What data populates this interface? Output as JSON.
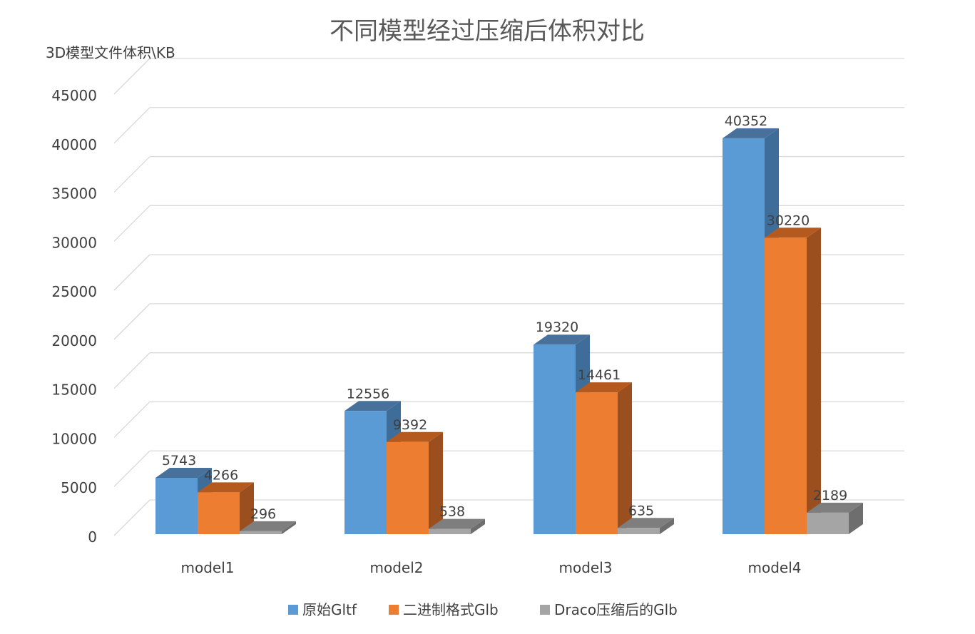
{
  "chart_data": {
    "type": "bar",
    "title": "不同模型经过压缩后体积对比",
    "ylabel": "3D模型文件体积\\KB",
    "xlabel": "",
    "categories": [
      "model1",
      "model2",
      "model3",
      "model4"
    ],
    "ylim": [
      0,
      45000
    ],
    "yticks": [
      0,
      5000,
      10000,
      15000,
      20000,
      25000,
      30000,
      35000,
      40000,
      45000
    ],
    "grid": true,
    "legend_position": "bottom",
    "series": [
      {
        "name": "原始Gltf",
        "values": [
          5743,
          12556,
          19320,
          40352
        ],
        "color": "#5b9bd5",
        "side_color": "#3e6d99",
        "top_color": "#47719a"
      },
      {
        "name": "二进制格式Glb",
        "values": [
          4266,
          9392,
          14461,
          30220
        ],
        "color": "#ed7d31",
        "side_color": "#9c4f1e",
        "top_color": "#b55a1f"
      },
      {
        "name": "Draco压缩后的Glb",
        "values": [
          296,
          538,
          635,
          2189
        ],
        "color": "#a5a5a5",
        "side_color": "#6e6e6e",
        "top_color": "#7e7e7e"
      }
    ]
  }
}
